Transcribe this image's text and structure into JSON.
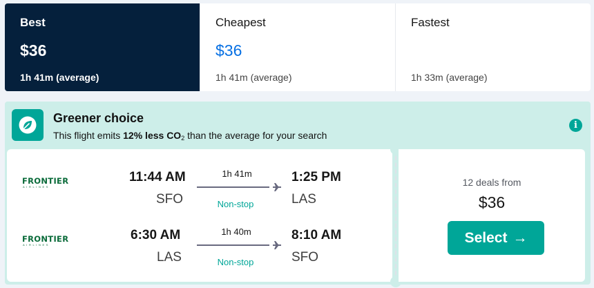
{
  "tabs": [
    {
      "label": "Best",
      "price": "$36",
      "duration": "1h 41m (average)"
    },
    {
      "label": "Cheapest",
      "price": "$36",
      "duration": "1h 41m (average)"
    },
    {
      "label": "Fastest",
      "price": "",
      "duration": "1h 33m (average)"
    }
  ],
  "eco": {
    "title": "Greener choice",
    "desc_pre": "This flight emits ",
    "desc_bold": "12% less CO",
    "desc_sub": "2",
    "desc_post": " than the average for your search",
    "info_glyph": "i"
  },
  "legs": [
    {
      "airline": "FRONTIER",
      "airline_sub": "AIRLINES",
      "depart_time": "11:44 AM",
      "depart_airport": "SFO",
      "duration": "1h 41m",
      "stops": "Non-stop",
      "arrive_time": "1:25 PM",
      "arrive_airport": "LAS"
    },
    {
      "airline": "FRONTIER",
      "airline_sub": "AIRLINES",
      "depart_time": "6:30 AM",
      "depart_airport": "LAS",
      "duration": "1h 40m",
      "stops": "Non-stop",
      "arrive_time": "8:10 AM",
      "arrive_airport": "SFO"
    }
  ],
  "offer": {
    "deals": "12 deals from",
    "price": "$36",
    "select_label": "Select",
    "select_arrow": "→"
  },
  "colors": {
    "navy": "#05203c",
    "accent_teal": "#00a698",
    "cheapest_blue": "#0770e3",
    "eco_bg": "#cdeee9"
  }
}
